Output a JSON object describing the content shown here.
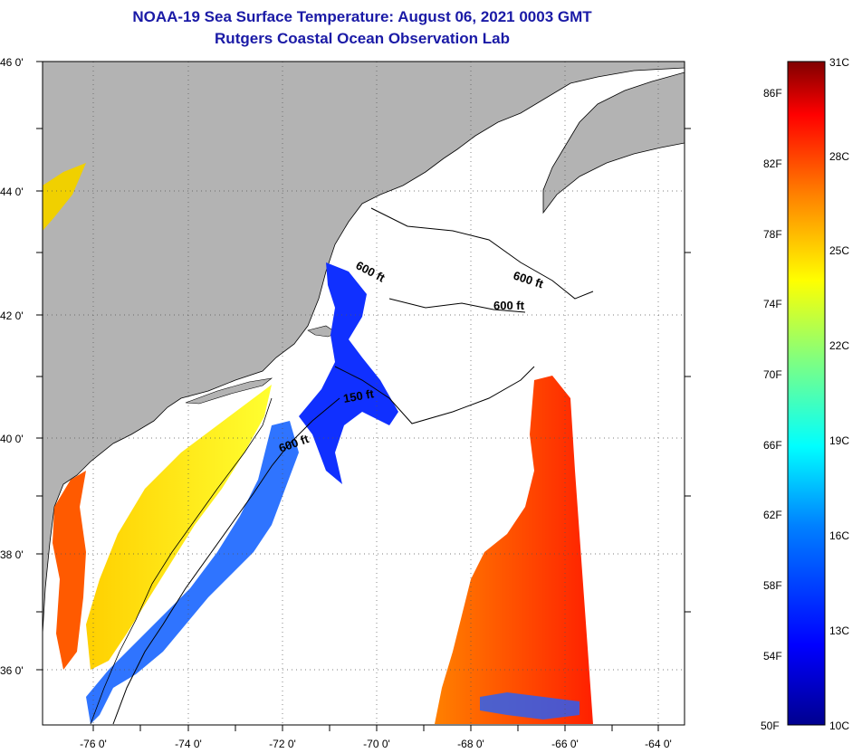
{
  "title": "NOAA-19 Sea Surface Temperature:  August 06, 2021 0003 GMT",
  "subtitle": "Rutgers Coastal Ocean Observation Lab",
  "map": {
    "lat_labels": [
      "46 0'",
      "44 0'",
      "42 0'",
      "40 0'",
      "38 0'",
      "36 0'"
    ],
    "lon_labels": [
      "-76 0'",
      "-74 0'",
      "-72 0'",
      "-70 0'",
      "-68 0'",
      "-66 0'",
      "-64 0'"
    ],
    "contour_labels": [
      "600 ft",
      "600 ft",
      "600 ft",
      "150 ft",
      "600 ft"
    ],
    "land_color": "#b3b3b3",
    "no_data_color": "#ffffff"
  },
  "colorbar": {
    "fahrenheit_labels": [
      "86F",
      "82F",
      "78F",
      "74F",
      "70F",
      "66F",
      "62F",
      "58F",
      "54F",
      "50F"
    ],
    "celsius_labels": [
      "31C",
      "28C",
      "25C",
      "22C",
      "19C",
      "16C",
      "13C",
      "10C"
    ],
    "range_c": [
      10,
      31
    ],
    "colors": [
      "#00008f",
      "#0000ff",
      "#0080ff",
      "#00ffff",
      "#80ff80",
      "#ffff00",
      "#ff8000",
      "#ff0000",
      "#800000"
    ]
  }
}
